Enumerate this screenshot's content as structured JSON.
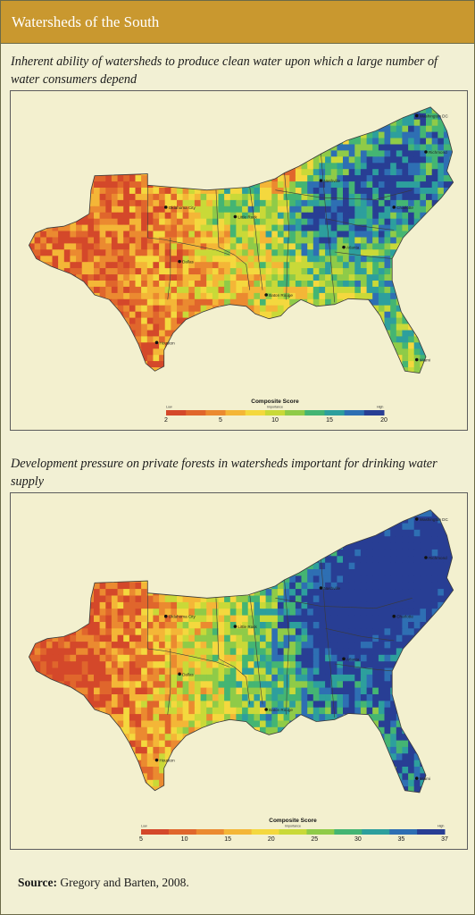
{
  "header": {
    "title": "Watersheds of the South"
  },
  "maps": [
    {
      "caption": "Inherent ability of watersheds to produce clean water upon which a large number of water consumers depend",
      "legend": {
        "title": "Composite Score",
        "sub": "Importance",
        "low": "Low",
        "high": "High",
        "ticks": [
          "2",
          "5",
          "10",
          "15",
          "20"
        ]
      },
      "cities": [
        "Washington DC",
        "Oklahoma City",
        "Little Rock",
        "Baton Rouge",
        "Houston",
        "Dallas",
        "Nashville",
        "Atlanta",
        "Charlotte",
        "Richmond",
        "Miami"
      ],
      "palette": [
        "#d4482a",
        "#e0662c",
        "#eb8a30",
        "#f4b637",
        "#f4d83e",
        "#c9d938",
        "#8fcb48",
        "#44b573",
        "#2d9f9d",
        "#2e6fb3",
        "#283e94"
      ]
    },
    {
      "caption": "Development pressure on private forests in watersheds important for drinking water supply",
      "legend": {
        "title": "Composite Score",
        "sub": "Importance",
        "low": "Low",
        "high": "High",
        "ticks": [
          "5",
          "10",
          "15",
          "20",
          "25",
          "30",
          "35",
          "37"
        ]
      },
      "cities": [
        "Washington DC",
        "Oklahoma City",
        "Little Rock",
        "Baton Rouge",
        "Houston",
        "Dallas",
        "Nashville",
        "Atlanta",
        "Charlotte",
        "Richmond",
        "Miami"
      ],
      "palette": [
        "#d4482a",
        "#e0662c",
        "#eb8a30",
        "#f4b637",
        "#f4d83e",
        "#c9d938",
        "#8fcb48",
        "#44b573",
        "#2d9f9d",
        "#2e6fb3",
        "#283e94"
      ]
    }
  ],
  "source": {
    "label": "Source:",
    "text": "Gregory and Barten, 2008."
  }
}
